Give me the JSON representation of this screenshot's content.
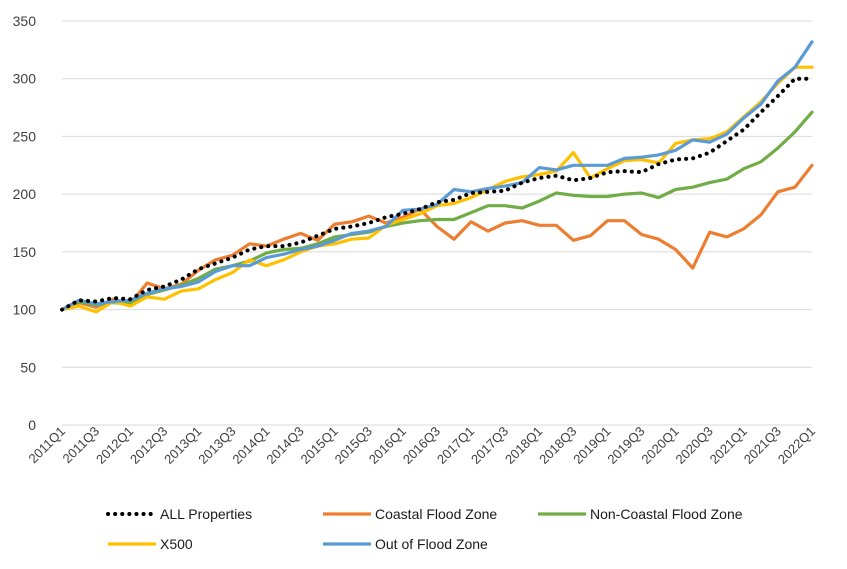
{
  "chart_data": {
    "type": "line",
    "title": "",
    "xlabel": "",
    "ylabel": "",
    "ylim": [
      0,
      350
    ],
    "yticks": [
      0,
      50,
      100,
      150,
      200,
      250,
      300,
      350
    ],
    "grid": true,
    "legend_position": "bottom",
    "x": [
      "2011Q1",
      "2011Q2",
      "2011Q3",
      "2011Q4",
      "2012Q1",
      "2012Q2",
      "2012Q3",
      "2012Q4",
      "2013Q1",
      "2013Q2",
      "2013Q3",
      "2013Q4",
      "2014Q1",
      "2014Q2",
      "2014Q3",
      "2014Q4",
      "2015Q1",
      "2015Q2",
      "2015Q3",
      "2015Q4",
      "2016Q1",
      "2016Q2",
      "2016Q3",
      "2016Q4",
      "2017Q1",
      "2017Q2",
      "2017Q3",
      "2017Q4",
      "2018Q1",
      "2018Q2",
      "2018Q3",
      "2018Q4",
      "2019Q1",
      "2019Q2",
      "2019Q3",
      "2019Q4",
      "2020Q1",
      "2020Q2",
      "2020Q3",
      "2020Q4",
      "2021Q1",
      "2021Q2",
      "2021Q3",
      "2021Q4",
      "2022Q1"
    ],
    "x_tick_labels": [
      "2011Q1",
      "2011Q3",
      "2012Q1",
      "2012Q3",
      "2013Q1",
      "2013Q3",
      "2014Q1",
      "2014Q3",
      "2015Q1",
      "2015Q3",
      "2016Q1",
      "2016Q3",
      "2017Q1",
      "2017Q3",
      "2018Q1",
      "2018Q3",
      "2019Q1",
      "2019Q3",
      "2020Q1",
      "2020Q3",
      "2021Q1",
      "2021Q3",
      "2022Q1"
    ],
    "series": [
      {
        "name": "ALL Properties",
        "color": "#000000",
        "style": "dotted",
        "values": [
          100,
          108,
          107,
          110,
          109,
          117,
          120,
          126,
          135,
          140,
          145,
          152,
          155,
          155,
          158,
          164,
          170,
          172,
          175,
          180,
          183,
          187,
          193,
          195,
          201,
          202,
          203,
          210,
          214,
          216,
          212,
          214,
          219,
          220,
          219,
          226,
          230,
          231,
          236,
          246,
          256,
          271,
          285,
          300,
          300
        ]
      },
      {
        "name": "Coastal Flood Zone",
        "color": "#ED7D31",
        "style": "solid",
        "values": [
          100,
          106,
          102,
          109,
          105,
          123,
          118,
          122,
          134,
          143,
          147,
          157,
          155,
          161,
          166,
          160,
          174,
          176,
          181,
          175,
          180,
          187,
          172,
          161,
          176,
          168,
          175,
          177,
          173,
          173,
          160,
          164,
          177,
          177,
          165,
          161,
          152,
          136,
          167,
          163,
          170,
          182,
          202,
          206,
          225
        ]
      },
      {
        "name": "Non-Coastal Flood Zone",
        "color": "#70AD47",
        "style": "solid",
        "values": [
          100,
          107,
          104,
          106,
          105,
          113,
          117,
          121,
          127,
          135,
          138,
          142,
          149,
          152,
          153,
          157,
          163,
          165,
          167,
          172,
          175,
          177,
          178,
          178,
          184,
          190,
          190,
          188,
          194,
          201,
          199,
          198,
          198,
          200,
          201,
          197,
          204,
          206,
          210,
          213,
          222,
          228,
          240,
          254,
          271
        ]
      },
      {
        "name": "X500",
        "color": "#FFC000",
        "style": "solid",
        "values": [
          100,
          103,
          98,
          107,
          103,
          111,
          109,
          116,
          118,
          126,
          132,
          143,
          138,
          143,
          150,
          155,
          157,
          161,
          162,
          173,
          178,
          183,
          190,
          192,
          197,
          204,
          211,
          215,
          217,
          220,
          236,
          214,
          222,
          229,
          230,
          227,
          244,
          247,
          248,
          254,
          267,
          280,
          296,
          310,
          310
        ]
      },
      {
        "name": "Out of Flood Zone",
        "color": "#5B9BD5",
        "style": "solid",
        "values": [
          100,
          108,
          105,
          107,
          108,
          114,
          118,
          120,
          124,
          133,
          138,
          138,
          145,
          148,
          152,
          155,
          160,
          166,
          168,
          172,
          186,
          187,
          191,
          204,
          202,
          205,
          207,
          210,
          223,
          221,
          225,
          225,
          225,
          231,
          232,
          234,
          238,
          247,
          245,
          252,
          266,
          278,
          298,
          310,
          332
        ]
      }
    ]
  }
}
